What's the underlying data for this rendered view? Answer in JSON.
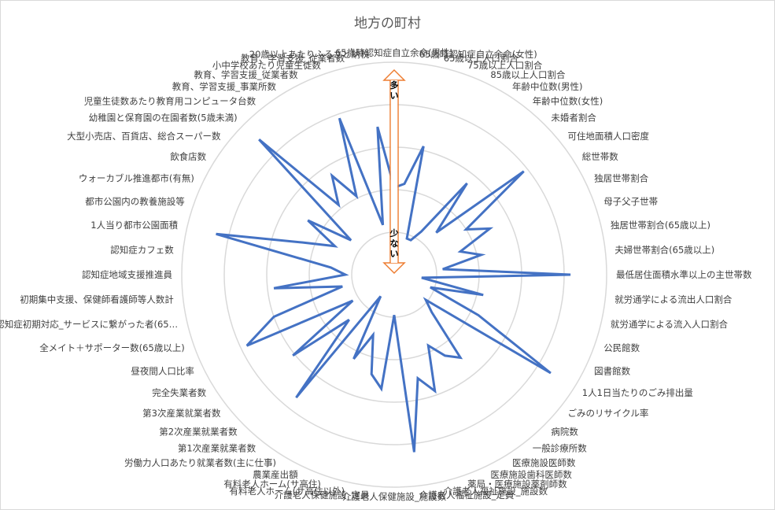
{
  "chart_data": {
    "type": "radar",
    "title": "地方の町村",
    "categories": [
      "65歳時認知症自立余命(男性)",
      "65歳時認知症自立余命(女性)",
      "65歳以上人口割合",
      "75歳以上人口割合",
      "85歳以上人口割合",
      "年齢中位数(男性)",
      "年齢中位数(女性)",
      "未婚者割合",
      "可住地面積人口密度",
      "総世帯数",
      "独居世帯割合",
      "母子父子世帯",
      "独居世帯割合(65歳以上)",
      "夫婦世帯割合(65歳以上)",
      "最低居住面積水準以上の主世帯数",
      "就労通学による流出人口割合",
      "就労通学による流入人口割合",
      "公民館数",
      "図書館数",
      "1人1日当たりのごみ排出量",
      "ごみのリサイクル率",
      "病院数",
      "一般診療所数",
      "医療施設医師数",
      "医療施設歯科医師数",
      "薬局・医療施設薬剤師数",
      "介護老人福祉施設_施設数",
      "介護老人福祉施設_定員",
      "介護老人保健施設_施設数",
      "介護老人保健施設_定員",
      "有料老人ホーム(サ高住以外)",
      "有料老人ホーム(サ高住)",
      "農業産出額",
      "労働力人口あたり就業者数(主に仕事)",
      "第1次産業就業者数",
      "第2次産業就業者数",
      "第3次産業就業者数",
      "完全失業者数",
      "昼夜間人口比率",
      "全メイト＋サポーター数(65歳以上)",
      "認知症初期対応_サービスに繋がった者(65…",
      "初期集中支援、保健師看護師等人数計",
      "認知症地域支援推進員",
      "認知症カフェ数",
      "1人当り都市公園面積",
      "都市公園内の教養施設等",
      "ウォーカブル推進都市(有無)",
      "飲食店数",
      "大型小売店、百貨店、総合スーパー数",
      "幼稚園と保育園の在園者数(5歳未満)",
      "児童生徒数あたり教育用コンピュータ台数",
      "教育、学習支援_事業所数",
      "教育、学習支援_従業者数",
      "小中学校あたり児童生徒数",
      "教育、学習支援_従業者数",
      "20歳以上あたりふるさと納税"
    ],
    "series": [
      {
        "values": [
          0.41,
          0.43,
          0.62,
          0.18,
          0.18,
          0.24,
          0.55,
          0.28,
          0.78,
          0.4,
          0.5,
          0.33,
          0.42,
          0.23,
          0.83,
          0.13,
          0.43,
          0.18,
          0.44,
          0.87,
          0.19,
          0.25,
          0.5,
          0.45,
          0.37,
          0.58,
          0.5,
          0.84,
          0.19,
          0.54,
          0.48,
          0.3,
          0.44,
          0.12,
          0.74,
          0.3,
          0.61,
          0.23,
          0.77,
          0.6,
          0.25,
          0.57,
          0.23,
          0.3,
          0.86,
          0.46,
          0.31,
          0.48,
          0.26,
          0.9,
          0.42,
          0.55,
          0.41,
          0.78,
          0.24,
          0.7
        ]
      }
    ],
    "rmin": 0,
    "rmax": 1,
    "grid": true,
    "legend": "none",
    "line_color": "#4472c4",
    "grid_color": "#d9d9d9",
    "annotation": {
      "high_label": "多い",
      "low_label": "少ない",
      "arrow_color": "#ed7d31"
    }
  }
}
